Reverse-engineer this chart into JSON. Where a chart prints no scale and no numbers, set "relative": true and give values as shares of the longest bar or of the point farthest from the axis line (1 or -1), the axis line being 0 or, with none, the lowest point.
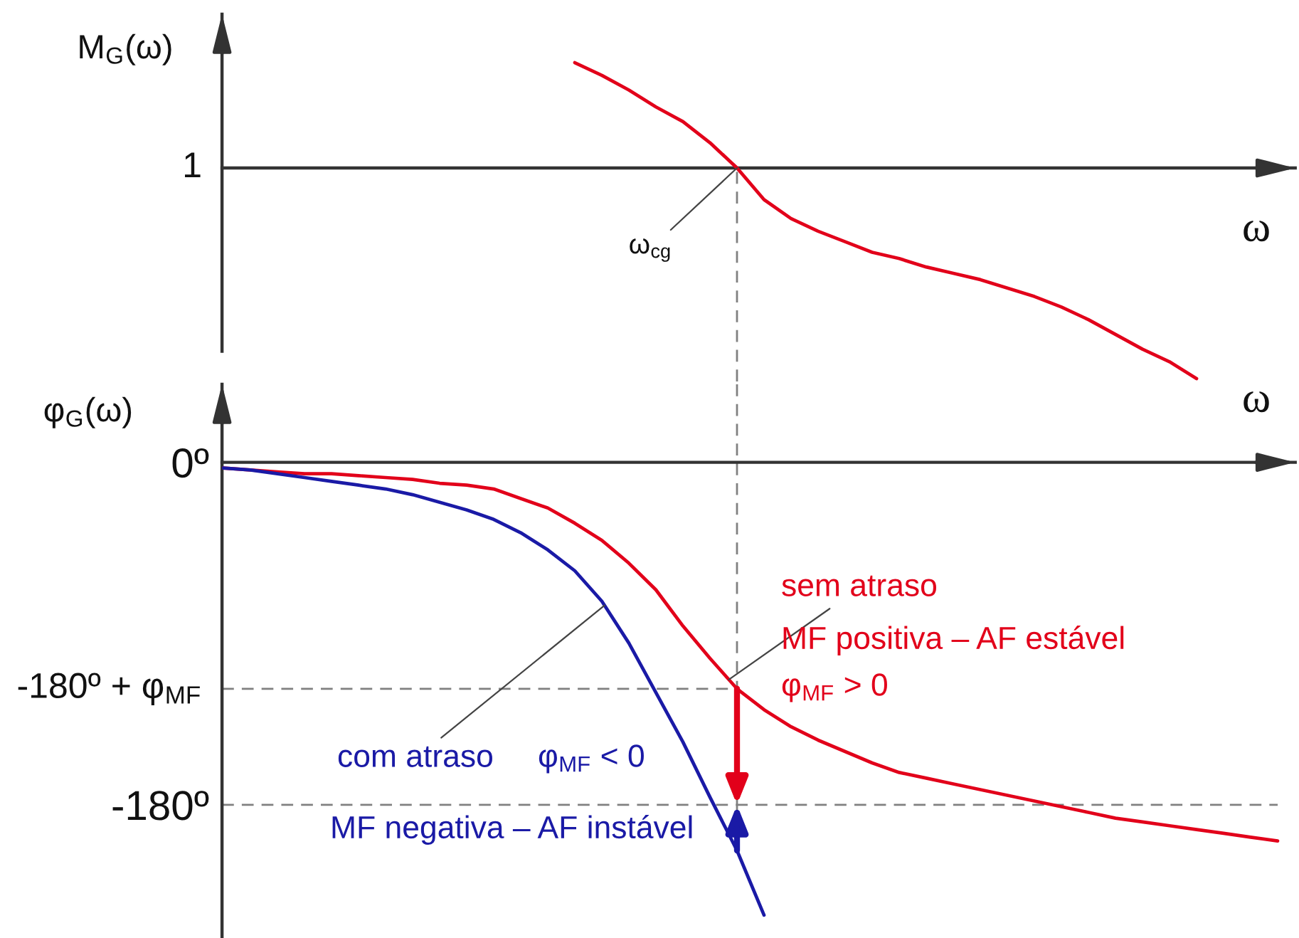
{
  "chart_data": [
    {
      "type": "line",
      "xlabel": "ω",
      "ylabel": "M$_{G}$(ω)",
      "relative": true,
      "categories": [
        null,
        null,
        null,
        null,
        null,
        null,
        null,
        null,
        null,
        null,
        null,
        null,
        null,
        null,
        null,
        null,
        null,
        null,
        null,
        null,
        null,
        null,
        null,
        null,
        null,
        null,
        null,
        null,
        null,
        null,
        null,
        null,
        null,
        null,
        null,
        null,
        null,
        null,
        null,
        null
      ],
      "series": [
        {
          "color": "#e2001a",
          "values": [
            null,
            null,
            null,
            null,
            null,
            null,
            null,
            null,
            null,
            null,
            null,
            null,
            null,
            0.5,
            0.44,
            0.37,
            0.29,
            0.22,
            0.12,
            0,
            -0.15,
            -0.24,
            -0.3,
            -0.35,
            -0.4,
            -0.43,
            -0.47,
            -0.5,
            -0.53,
            -0.57,
            -0.61,
            -0.66,
            -0.72,
            -0.79,
            -0.86,
            -0.92,
            -1,
            null,
            null,
            null
          ]
        }
      ],
      "annotations": [
        "1",
        "ω$_{cg}$"
      ]
    },
    {
      "type": "line",
      "xlabel": "ω",
      "ylabel": "φ$_{G}$(ω)",
      "categories": [
        null,
        null,
        null,
        null,
        null,
        null,
        null,
        null,
        null,
        null,
        null,
        null,
        null,
        null,
        null,
        null,
        null,
        null,
        null,
        null,
        null,
        null,
        null,
        null,
        null,
        null,
        null,
        null,
        null,
        null,
        null,
        null,
        null,
        null,
        null,
        null,
        null,
        null,
        null,
        null
      ],
      "ylim": [
        -250,
        41
      ],
      "yticks": [
        {
          "value": 0,
          "label": "0º"
        },
        {
          "value": -180,
          "label": "-180º"
        }
      ],
      "series": [
        {
          "name": "sem atraso",
          "color": "#e2001a",
          "values": [
            -3,
            -4,
            -5,
            -6,
            -6,
            -7,
            -8,
            -9,
            -11,
            -12,
            -14,
            -19,
            -24,
            -32,
            -41,
            -53,
            -67,
            -86,
            -103,
            -119,
            -130,
            -139,
            -146,
            -152,
            -158,
            -163,
            -166,
            -169,
            -172,
            -175,
            -178,
            -181,
            -184,
            -187,
            -189,
            -191,
            -193,
            -195,
            -197,
            -199
          ]
        },
        {
          "name": "com atraso",
          "color": "#1a1aa6",
          "values": [
            -3,
            -4,
            -6,
            -8,
            -10,
            -12,
            -14,
            -17,
            -21,
            -25,
            -30,
            -37,
            -46,
            -57,
            -73,
            -95,
            -121,
            -147,
            -176,
            -204,
            -238,
            null,
            null,
            null,
            null,
            null,
            null,
            null,
            null,
            null,
            null,
            null,
            null,
            null,
            null,
            null,
            null,
            null,
            null,
            null
          ]
        }
      ],
      "ref_lines": [
        {
          "axis": "y",
          "value": -119,
          "color": "#808080",
          "line_style": "dashed"
        },
        {
          "axis": "y",
          "value": -180,
          "color": "#808080",
          "line_style": "dashed"
        }
      ],
      "annotations": [
        "-180º + φ$_{MF}$",
        "MF positiva – AF estável",
        "φ$_{MF}$ > 0",
        "φ$_{MF}$ < 0",
        "MF negativa – AF instável"
      ]
    }
  ]
}
